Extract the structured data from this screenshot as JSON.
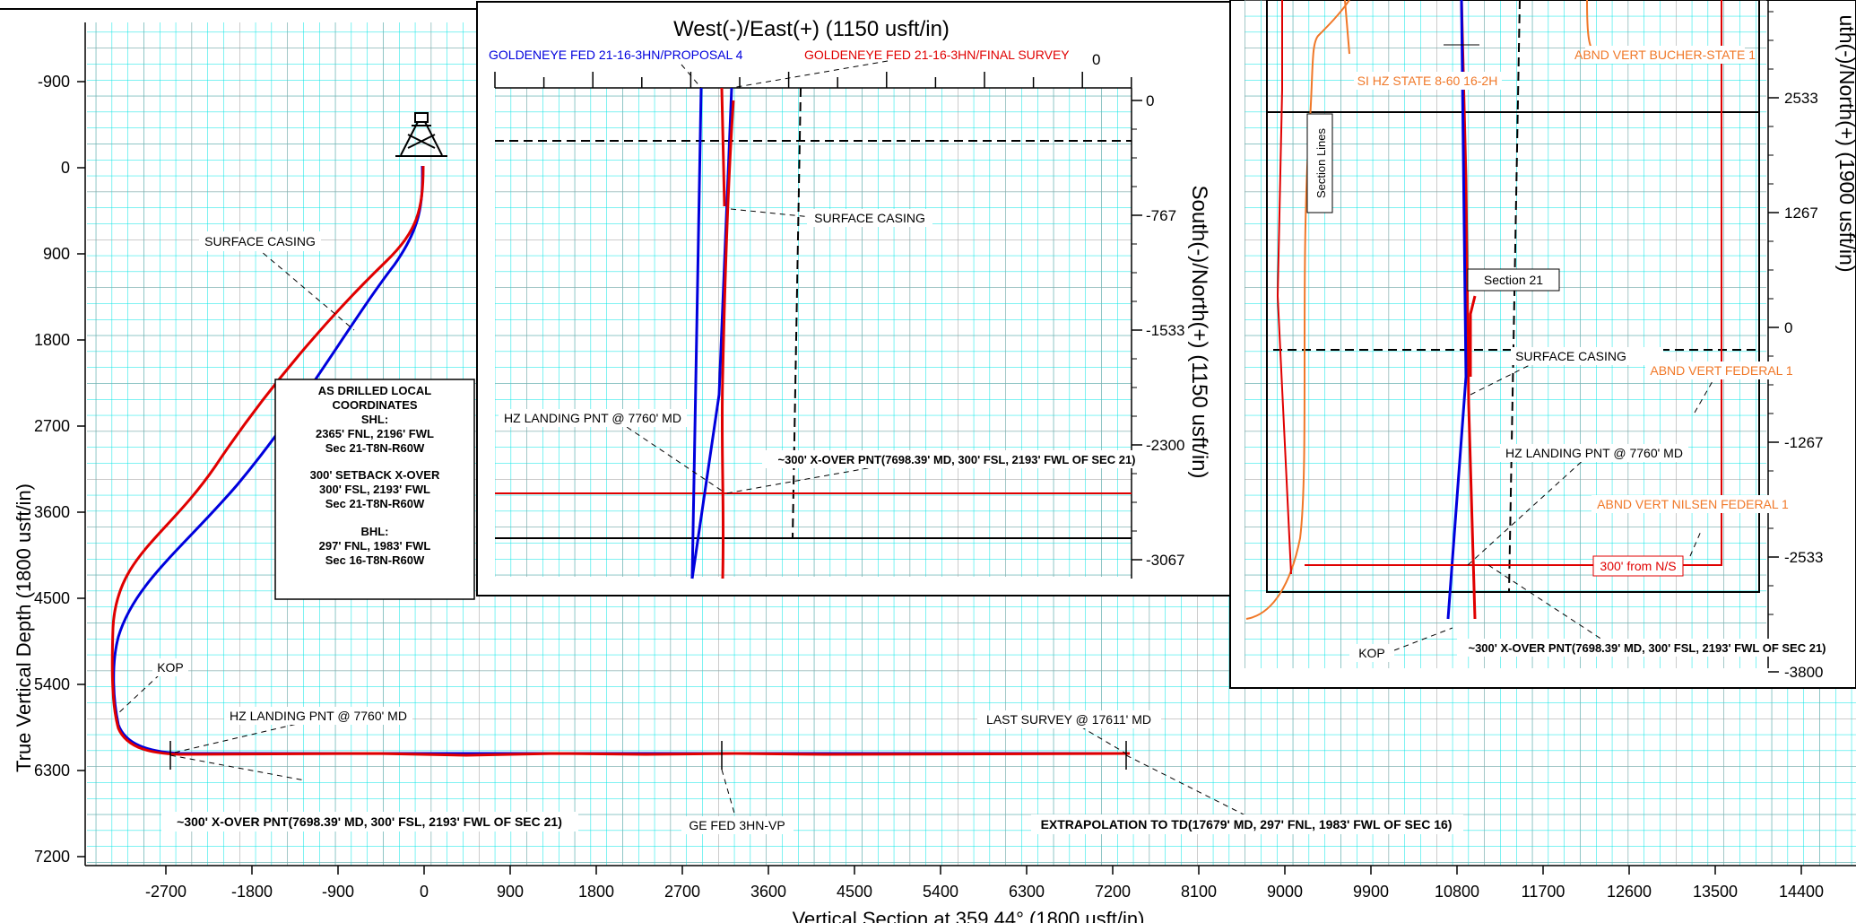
{
  "colors": {
    "grid_minor": "#00e5e5",
    "grid_major": "#8a8a8a",
    "plan_red": "#e00000",
    "proposal_blue": "#0000dd",
    "offset_orange": "#f07828",
    "frame": "#000000"
  },
  "main": {
    "y_axis_title": "True Vertical Depth (1800 usft/in)",
    "x_axis_title": "Vertical Section at 359.44° (1800 usft/in)",
    "x_ticks": [
      "-2700",
      "-1800",
      "-900",
      "0",
      "900",
      "1800",
      "2700",
      "3600",
      "4500",
      "5400",
      "6300",
      "7200",
      "8100",
      "9000",
      "9900",
      "10800",
      "11700",
      "12600",
      "13500",
      "14400"
    ],
    "y_ticks": [
      "-900",
      "0",
      "900",
      "1800",
      "2700",
      "3600",
      "4500",
      "5400",
      "6300",
      "7200"
    ],
    "labels": {
      "surface_casing": "SURFACE CASING",
      "kop": "KOP",
      "hz_landing": "HZ LANDING PNT @ 7760' MD",
      "last_survey": "LAST SURVEY @ 17611' MD",
      "xover": "~300' X-OVER PNT(7698.39' MD, 300' FSL, 2193' FWL OF SEC 21)",
      "ge_fed": "GE FED 3HN-VP",
      "extrapolation": "EXTRAPOLATION TO TD(17679' MD, 297' FNL, 1983' FWL OF SEC 16)"
    },
    "coords_box": {
      "title1": "AS DRILLED LOCAL",
      "title2": "COORDINATES",
      "shl_h": "SHL:",
      "shl_1": "2365' FNL, 2196' FWL",
      "shl_2": "Sec 21-T8N-R60W",
      "sb_h": "300' SETBACK X-OVER",
      "sb_1": "300' FSL, 2193' FWL",
      "sb_2": "Sec 21-T8N-R60W",
      "bhl_h": "BHL:",
      "bhl_1": "297' FNL, 1983' FWL",
      "bhl_2": "Sec 16-T8N-R60W"
    }
  },
  "inset": {
    "title": "West(-)/East(+) (1150 usft/in)",
    "right_axis_title": "South(-)/North(+) (1150 usft/in)",
    "top_tick": "0",
    "right_ticks": [
      "0",
      "-767",
      "-1533",
      "-2300",
      "-3067"
    ],
    "legend_blue": "GOLDENEYE FED 21-16-3HN/PROPOSAL 4",
    "legend_red": "GOLDENEYE FED 21-16-3HN/FINAL SURVEY",
    "surface_casing": "SURFACE CASING",
    "hz_landing": "HZ LANDING PNT @ 7760' MD",
    "xover": "~300' X-OVER PNT(7698.39' MD, 300' FSL, 2193' FWL OF SEC 21)"
  },
  "plan": {
    "right_axis_title": "uth(-)/North(+) (1900 usft/in)",
    "right_ticks": [
      "2533",
      "1267",
      "0",
      "-1267",
      "-2533",
      "-3800"
    ],
    "section_lines": "Section Lines",
    "section_21": "Section 21",
    "si_hz": "SI HZ STATE 8-60 16-2H",
    "abnd_bucher": "ABND VERT BUCHER-STATE 1",
    "abnd_federal": "ABND VERT FEDERAL 1",
    "abnd_nilsen": "ABND VERT NILSEN FEDERAL 1",
    "n_s_300": "300' from N/S",
    "surface_casing": "SURFACE CASING",
    "hz_landing": "HZ LANDING PNT @ 7760' MD",
    "kop": "KOP",
    "xover": "~300' X-OVER PNT(7698.39' MD, 300' FSL, 2193' FWL OF SEC 21)"
  }
}
